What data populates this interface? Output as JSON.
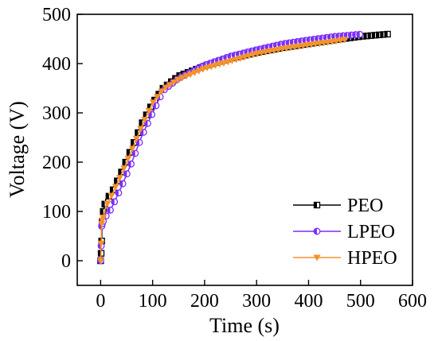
{
  "chart_data": {
    "type": "line",
    "xlabel": "Time (s)",
    "ylabel": "Voltage (V)",
    "xlim": [
      -45,
      600
    ],
    "ylim": [
      -50,
      500
    ],
    "xticks": [
      0,
      100,
      200,
      300,
      400,
      500,
      600
    ],
    "yticks": [
      0,
      100,
      200,
      300,
      400,
      500
    ],
    "x_tick_labels": [
      "0",
      "100",
      "200",
      "300",
      "400",
      "500",
      "600"
    ],
    "y_tick_labels": [
      "0",
      "100",
      "200",
      "300",
      "400",
      "500"
    ],
    "grid": false,
    "legend_position": "bottom-right",
    "series": [
      {
        "name": "PEO",
        "color": "#000000",
        "marker": "square-half",
        "x": [
          0,
          1,
          2,
          3,
          5,
          10,
          20,
          40,
          60,
          80,
          100,
          120,
          150,
          200,
          250,
          300,
          350,
          400,
          450,
          500,
          555
        ],
        "y": [
          0,
          15,
          40,
          80,
          100,
          125,
          135,
          180,
          230,
          280,
          320,
          350,
          375,
          395,
          410,
          422,
          432,
          440,
          448,
          455,
          460
        ]
      },
      {
        "name": "LPEO",
        "color": "#7b2ff7",
        "marker": "circle-half",
        "x": [
          0,
          1,
          2,
          3,
          5,
          10,
          20,
          40,
          60,
          80,
          100,
          120,
          150,
          200,
          250,
          300,
          350,
          400,
          450,
          505
        ],
        "y": [
          0,
          30,
          70,
          75,
          80,
          90,
          105,
          150,
          200,
          255,
          300,
          345,
          370,
          397,
          415,
          428,
          440,
          448,
          455,
          460
        ]
      },
      {
        "name": "HPEO",
        "color": "#f5922a",
        "marker": "triangle-down",
        "x": [
          0,
          1,
          2,
          3,
          5,
          10,
          20,
          40,
          60,
          80,
          100,
          120,
          150,
          200,
          250,
          300,
          350,
          400,
          450,
          475
        ],
        "y": [
          0,
          35,
          75,
          82,
          88,
          110,
          130,
          175,
          225,
          275,
          320,
          348,
          368,
          390,
          405,
          420,
          430,
          438,
          445,
          450
        ]
      }
    ]
  }
}
